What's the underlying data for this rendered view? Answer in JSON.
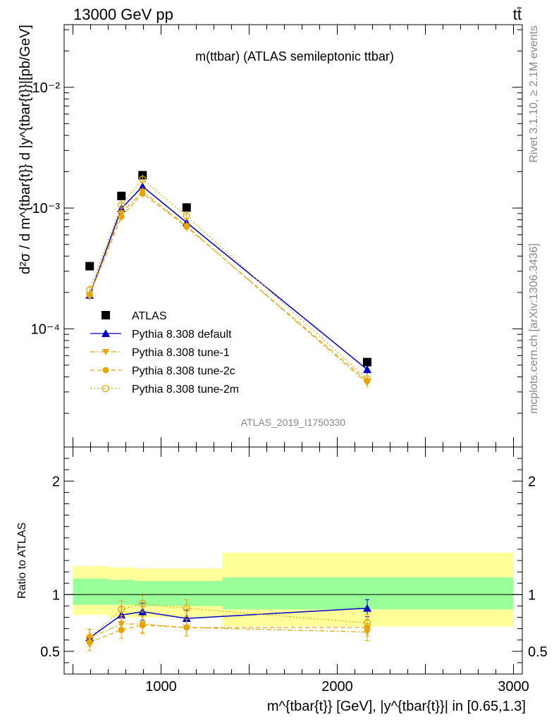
{
  "header": {
    "left": "13000 GeV pp",
    "right": "tt̄"
  },
  "side": {
    "rivet": "Rivet 3.1.10, ≥ 2.1M events",
    "mcplots": "mcplots.cern.ch [arXiv:1306.3436]"
  },
  "chart_data": [
    {
      "type": "line",
      "title": "m(ttbar) (ATLAS semileptonic ttbar)",
      "watermark": "ATLAS_2019_I1750330",
      "ylabel": "d²σ / d m^{tbar{t}} d |y^{tbar{t}}|[pb/GeV]",
      "yscale": "log",
      "xlim": [
        450,
        3050
      ],
      "ylim": [
        1.05e-05,
        0.033
      ],
      "ytick_labels": [
        "10⁻⁴",
        "10⁻³",
        "10⁻²"
      ],
      "x": [
        595,
        775,
        895,
        1145,
        2170
      ],
      "series": [
        {
          "name": "ATLAS",
          "values": [
            0.00033,
            0.00126,
            0.00187,
            0.00101,
            5.3e-05
          ],
          "color": "#000000"
        },
        {
          "name": "Pythia 8.308 default",
          "values": [
            0.00019,
            0.00099,
            0.00151,
            0.00076,
            4.6e-05
          ],
          "color": "#0000cc"
        },
        {
          "name": "Pythia 8.308 tune-1",
          "values": [
            0.00019,
            0.00091,
            0.00137,
            0.00071,
            3.55e-05
          ],
          "color": "#e8a500"
        },
        {
          "name": "Pythia 8.308 tune-2c",
          "values": [
            0.00019,
            0.00085,
            0.00132,
            0.0007,
            3.7e-05
          ],
          "color": "#e8a500"
        },
        {
          "name": "Pythia 8.308 tune-2m",
          "values": [
            0.00021,
            0.00106,
            0.00173,
            0.00086,
            3.85e-05
          ],
          "color": "#e8a500"
        }
      ],
      "legend_position": "lower-left"
    },
    {
      "type": "line",
      "ylabel": "Ratio to ATLAS",
      "xlabel": "m^{tbar{t}} [GeV], |y^{tbar{t}}| in [0.65,1.3]",
      "xlim": [
        450,
        3050
      ],
      "ylim": [
        0.3,
        2.3
      ],
      "ytick_labels": [
        "0.5",
        "1",
        "2"
      ],
      "xtick_labels": [
        "1000",
        "2000",
        "3000"
      ],
      "x": [
        595,
        775,
        895,
        1145,
        2170
      ],
      "bands": {
        "edges": [
          500,
          700,
          850,
          1000,
          1350,
          3000
        ],
        "green_lo": [
          0.91,
          0.91,
          0.9,
          0.9,
          0.87
        ],
        "green_hi": [
          1.14,
          1.13,
          1.12,
          1.12,
          1.15
        ],
        "yellow_lo": [
          0.82,
          0.8,
          0.8,
          0.8,
          0.72
        ],
        "yellow_hi": [
          1.25,
          1.24,
          1.23,
          1.23,
          1.37
        ]
      },
      "series": [
        {
          "name": "Pythia 8.308 default",
          "values": [
            0.62,
            0.82,
            0.85,
            0.79,
            0.88
          ]
        },
        {
          "name": "Pythia 8.308 tune-1",
          "values": [
            0.62,
            0.74,
            0.74,
            0.71,
            0.67
          ]
        },
        {
          "name": "Pythia 8.308 tune-2c",
          "values": [
            0.58,
            0.69,
            0.73,
            0.71,
            0.71
          ]
        },
        {
          "name": "Pythia 8.308 tune-2m",
          "values": [
            0.62,
            0.87,
            0.92,
            0.88,
            0.75
          ]
        }
      ]
    }
  ]
}
